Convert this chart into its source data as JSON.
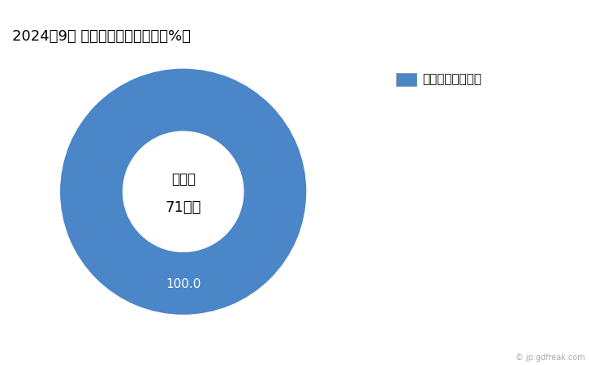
{
  "title": "2024年9月 輸出相手国のシェア（%）",
  "labels": [
    "コートジボワール"
  ],
  "values": [
    100.0
  ],
  "colors": [
    "#4a86c8"
  ],
  "center_text_line1": "総　額",
  "center_text_line2": "71万円",
  "slice_label": "100.0",
  "background_color": "#ffffff",
  "legend_label": "コートジボワール",
  "watermark": "© jp.gdfreak.com"
}
